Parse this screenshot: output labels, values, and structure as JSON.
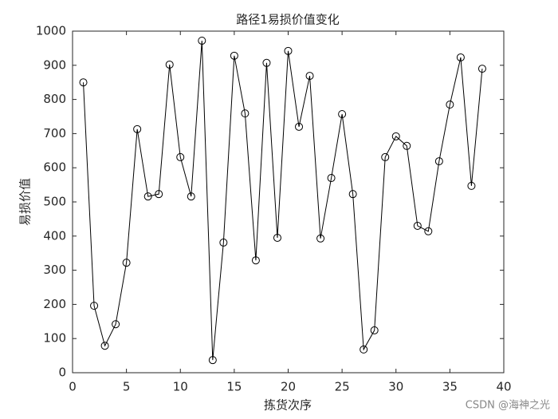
{
  "chart_data": {
    "type": "line",
    "title": "路径1易损价值变化",
    "x_label": "拣货次序",
    "y_label": "易损价值",
    "x": [
      1,
      2,
      3,
      4,
      5,
      6,
      7,
      8,
      9,
      10,
      11,
      12,
      13,
      14,
      15,
      16,
      17,
      18,
      19,
      20,
      21,
      22,
      23,
      24,
      25,
      26,
      27,
      28,
      29,
      30,
      31,
      32,
      33,
      34,
      35,
      36,
      37,
      38
    ],
    "values": [
      850,
      196,
      79,
      142,
      322,
      713,
      516,
      523,
      902,
      631,
      516,
      972,
      37,
      381,
      928,
      759,
      329,
      907,
      395,
      942,
      720,
      869,
      393,
      570,
      757,
      523,
      68,
      124,
      631,
      692,
      664,
      430,
      414,
      619,
      785,
      923,
      547,
      890
    ],
    "color": "#000000",
    "marker": "circle",
    "xlim": [
      0,
      40
    ],
    "xticks": [
      0,
      5,
      10,
      15,
      20,
      25,
      30,
      35,
      40
    ],
    "ylim": [
      0,
      1000
    ],
    "yticks": [
      0,
      100,
      200,
      300,
      400,
      500,
      600,
      700,
      800,
      900,
      1000
    ],
    "grid": false,
    "watermark": "CSDN @海神之光"
  }
}
